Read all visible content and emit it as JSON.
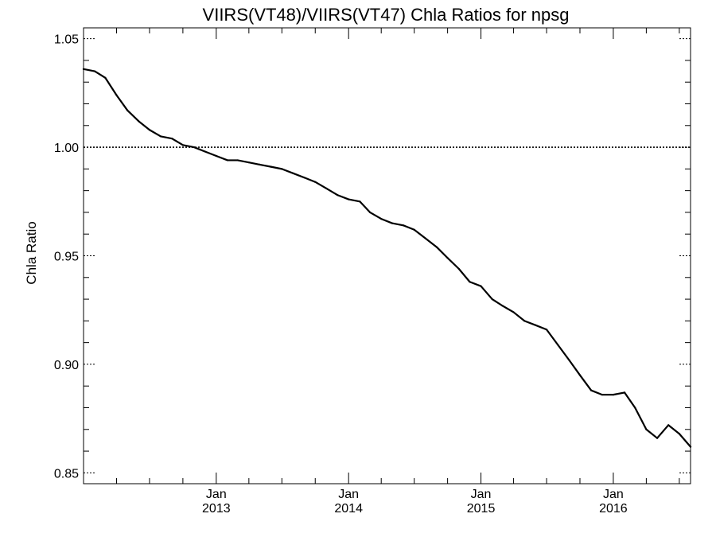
{
  "chart_data": {
    "type": "line",
    "title": "VIIRS(VT48)/VIIRS(VT47)  Chla Ratios for npsg",
    "xlabel": "",
    "ylabel": "Chla Ratio",
    "xlim": [
      "2012-01-01",
      "2016-08-01"
    ],
    "ylim": [
      0.845,
      1.055
    ],
    "yticks": [
      {
        "value": 0.85,
        "label": "0.85"
      },
      {
        "value": 0.9,
        "label": "0.90"
      },
      {
        "value": 0.95,
        "label": "0.95"
      },
      {
        "value": 1.0,
        "label": "1.00"
      },
      {
        "value": 1.05,
        "label": "1.05"
      }
    ],
    "xticks": [
      {
        "date": "2013-01-01",
        "month": "Jan",
        "year": "2013"
      },
      {
        "date": "2014-01-01",
        "month": "Jan",
        "year": "2014"
      },
      {
        "date": "2015-01-01",
        "month": "Jan",
        "year": "2015"
      },
      {
        "date": "2016-01-01",
        "month": "Jan",
        "year": "2016"
      }
    ],
    "reference_line": {
      "y": 1.0,
      "style": "dotted"
    },
    "grid": false,
    "series": [
      {
        "x": [
          "2012-01-01",
          "2012-02-01",
          "2012-03-01",
          "2012-04-01",
          "2012-05-01",
          "2012-06-01",
          "2012-07-01",
          "2012-08-01",
          "2012-09-01",
          "2012-10-01",
          "2012-11-01",
          "2012-12-01",
          "2013-01-01",
          "2013-02-01",
          "2013-03-01",
          "2013-04-01",
          "2013-05-01",
          "2013-06-01",
          "2013-07-01",
          "2013-08-01",
          "2013-09-01",
          "2013-10-01",
          "2013-11-01",
          "2013-12-01",
          "2014-01-01",
          "2014-02-01",
          "2014-03-01",
          "2014-04-01",
          "2014-05-01",
          "2014-06-01",
          "2014-07-01",
          "2014-08-01",
          "2014-09-01",
          "2014-10-01",
          "2014-11-01",
          "2014-12-01",
          "2015-01-01",
          "2015-02-01",
          "2015-03-01",
          "2015-04-01",
          "2015-05-01",
          "2015-06-01",
          "2015-07-01",
          "2015-08-01",
          "2015-09-01",
          "2015-10-01",
          "2015-11-01",
          "2015-12-01",
          "2016-01-01",
          "2016-02-01",
          "2016-03-01",
          "2016-04-01",
          "2016-05-01",
          "2016-06-01",
          "2016-07-01",
          "2016-08-01"
        ],
        "values": [
          1.036,
          1.035,
          1.032,
          1.024,
          1.017,
          1.012,
          1.008,
          1.005,
          1.004,
          1.001,
          1.0,
          0.998,
          0.996,
          0.994,
          0.994,
          0.993,
          0.992,
          0.991,
          0.99,
          0.988,
          0.986,
          0.984,
          0.981,
          0.978,
          0.976,
          0.975,
          0.97,
          0.967,
          0.965,
          0.964,
          0.962,
          0.958,
          0.954,
          0.949,
          0.944,
          0.938,
          0.936,
          0.93,
          0.927,
          0.924,
          0.92,
          0.918,
          0.916,
          0.909,
          0.902,
          0.895,
          0.888,
          0.886,
          0.886,
          0.887,
          0.88,
          0.87,
          0.866,
          0.872,
          0.868,
          0.862
        ]
      }
    ]
  }
}
